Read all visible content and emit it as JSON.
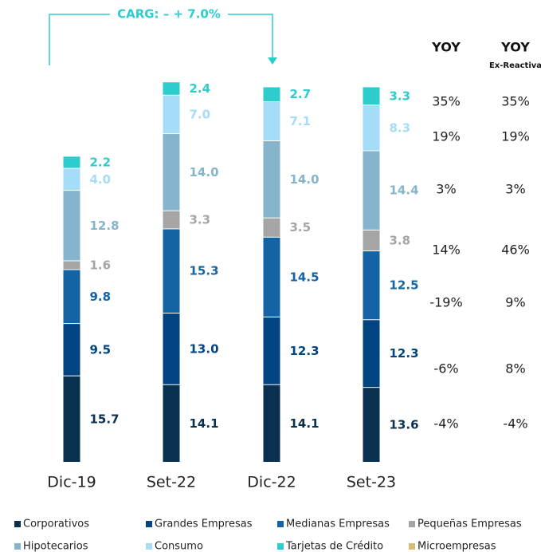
{
  "chart_data": {
    "type": "stacked-bar",
    "annotation": "CARG: – + 7.0%",
    "categories": [
      "Dic-19",
      "Set-22",
      "Dic-22",
      "Set-23"
    ],
    "series": [
      {
        "name": "Corporativos",
        "color": "#0a3050",
        "values": [
          15.7,
          14.1,
          14.1,
          13.6
        ],
        "value_labels": [
          "15.7",
          "14.1",
          "14.1",
          "13.6"
        ]
      },
      {
        "name": "Grandes Empresas",
        "color": "#004481",
        "values": [
          9.5,
          13.0,
          12.3,
          12.3
        ],
        "value_labels": [
          "9.5",
          "13.0",
          "12.3",
          "12.3"
        ]
      },
      {
        "name": "Medianas Empresas",
        "color": "#1464a5",
        "values": [
          9.8,
          15.3,
          14.5,
          12.5
        ],
        "value_labels": [
          "9.8",
          "15.3",
          "14.5",
          "12.5"
        ]
      },
      {
        "name": "Pequeñas Empresas",
        "color": "#a5a5a5",
        "values": [
          1.6,
          3.3,
          3.5,
          3.8
        ],
        "value_labels": [
          "1.6",
          "3.3",
          "3.5",
          "3.8"
        ]
      },
      {
        "name": "Hipotecarios",
        "color": "#85b4cc",
        "values": [
          12.8,
          14.0,
          14.0,
          14.4
        ],
        "value_labels": [
          "12.8",
          "14.0",
          "14.0",
          "14.4"
        ]
      },
      {
        "name": "Consumo",
        "color": "#a5dcf7",
        "values": [
          4.0,
          7.0,
          7.1,
          8.3
        ],
        "value_labels": [
          "4.0",
          "7.0",
          "7.1",
          "8.3"
        ]
      },
      {
        "name": "Tarjetas de Crédito",
        "color": "#2dcccd",
        "values": [
          2.2,
          2.4,
          2.7,
          3.3
        ],
        "value_labels": [
          "2.2",
          "2.4",
          "2.7",
          "3.3"
        ]
      },
      {
        "name": "Microempresas",
        "color": "#d8be75",
        "values": [
          null,
          null,
          null,
          null
        ],
        "value_labels": [
          null,
          null,
          null,
          null
        ]
      }
    ],
    "yoy": {
      "headers": [
        "YOY",
        "YOY"
      ],
      "subheader": "Ex-Reactiva",
      "rows": [
        [
          "35%",
          "35%"
        ],
        [
          "19%",
          "19%"
        ],
        [
          "3%",
          "3%"
        ],
        [
          "14%",
          "46%"
        ],
        [
          "-19%",
          "9%"
        ],
        [
          "-6%",
          "8%"
        ],
        [
          "-4%",
          "-4%"
        ]
      ]
    }
  }
}
